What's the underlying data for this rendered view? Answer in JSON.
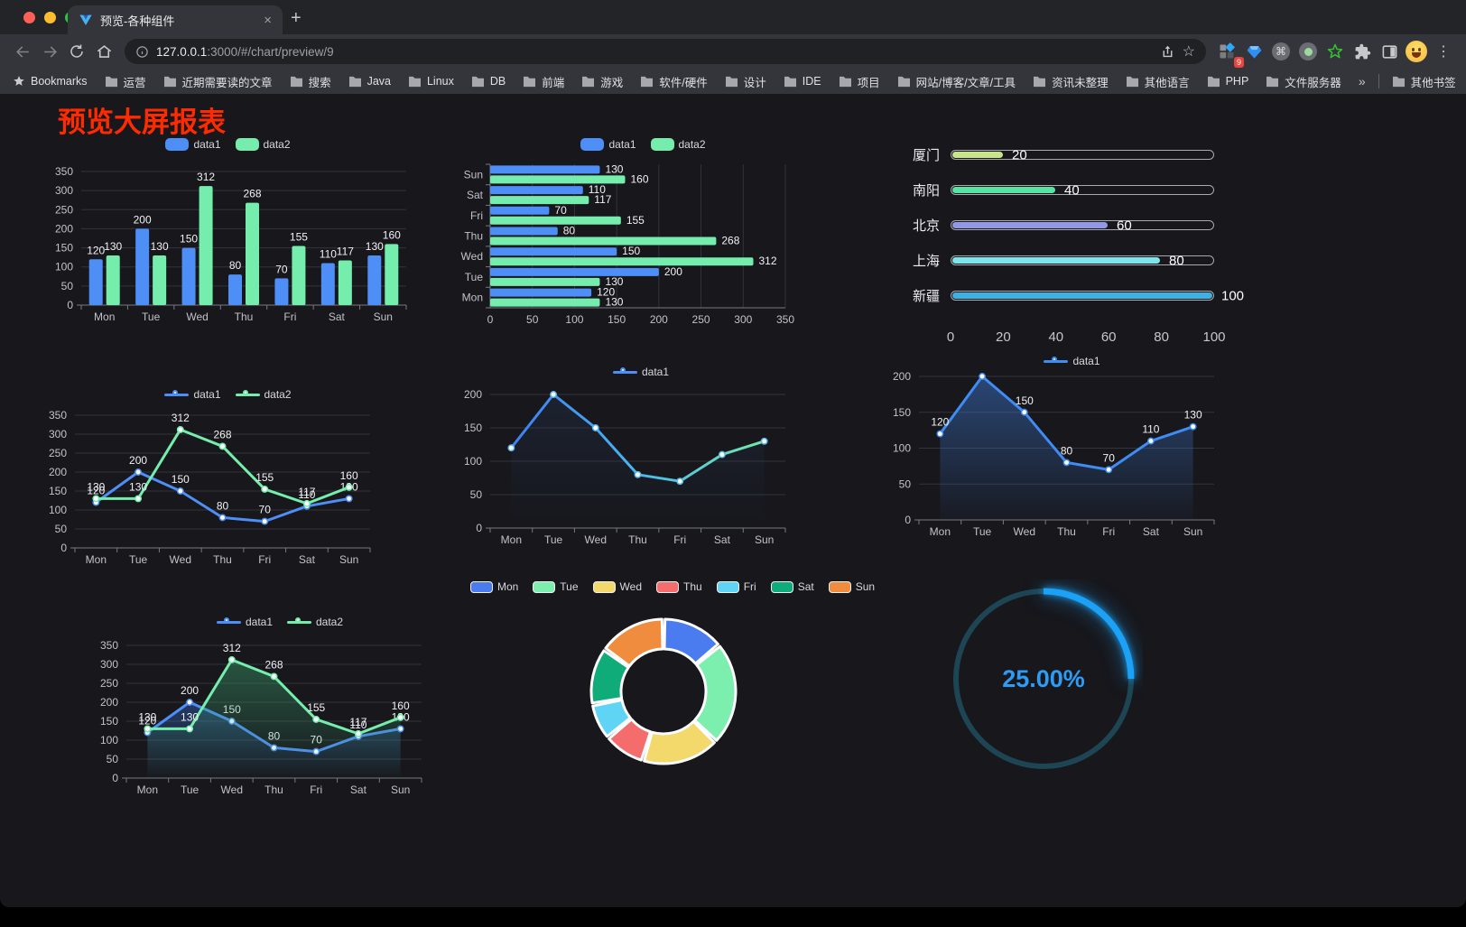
{
  "browser": {
    "tab": {
      "title": "预览-各种组件"
    },
    "icons": {
      "close": "×",
      "new_tab": "+",
      "menu": "⋮",
      "star": "☆",
      "command": "⌘"
    },
    "url": {
      "host": "127.0.0.1",
      "rest": ":3000/#/chart/preview/9"
    },
    "extension_badge": "9",
    "bookmarks": {
      "label": "Bookmarks",
      "folders": [
        "运营",
        "近期需要读的文章",
        "搜索",
        "Java",
        "Linux",
        "DB",
        "前端",
        "游戏",
        "软件/硬件",
        "设计",
        "IDE",
        "项目",
        "网站/博客/文章/工具",
        "资讯未整理",
        "其他语言",
        "PHP",
        "文件服务器"
      ],
      "overflow": "»",
      "other": "其他书签"
    }
  },
  "page": {
    "title": "预览大屏报表",
    "title_color": "#ff2b00",
    "background": "#17171c"
  },
  "chart_data": [
    {
      "type": "bar",
      "title": "",
      "categories": [
        "Mon",
        "Tue",
        "Wed",
        "Thu",
        "Fri",
        "Sat",
        "Sun"
      ],
      "ylim": [
        0,
        350
      ],
      "ytick_step": 50,
      "show_labels": true,
      "legend_position": "top",
      "series": [
        {
          "name": "data1",
          "color": "#4e8ef7",
          "values": [
            120,
            200,
            150,
            80,
            70,
            110,
            130
          ]
        },
        {
          "name": "data2",
          "color": "#75eead",
          "values": [
            130,
            130,
            312,
            268,
            155,
            117,
            160
          ]
        }
      ]
    },
    {
      "type": "hbar",
      "title": "",
      "categories": [
        "Sun",
        "Sat",
        "Fri",
        "Thu",
        "Wed",
        "Tue",
        "Mon"
      ],
      "xlim": [
        0,
        350
      ],
      "xticks": [
        0,
        50,
        100,
        150,
        200,
        250,
        300,
        350
      ],
      "show_labels": true,
      "legend_position": "top",
      "series": [
        {
          "name": "data1",
          "color": "#4e8ef7",
          "values": [
            130,
            110,
            70,
            80,
            150,
            200,
            120
          ]
        },
        {
          "name": "data2",
          "color": "#75eead",
          "values": [
            160,
            117,
            155,
            268,
            312,
            130,
            130
          ]
        }
      ]
    },
    {
      "type": "progress",
      "title": "",
      "max": 100,
      "xticks": [
        0,
        20,
        40,
        60,
        80,
        100
      ],
      "rows": [
        {
          "label": "厦门",
          "value": 20,
          "color": "#c9e58a"
        },
        {
          "label": "南阳",
          "value": 40,
          "color": "#57e3a4"
        },
        {
          "label": "北京",
          "value": 60,
          "color": "#9297e6"
        },
        {
          "label": "上海",
          "value": 80,
          "color": "#7ee6ea"
        },
        {
          "label": "新疆",
          "value": 100,
          "color": "#3fb0e0"
        }
      ]
    },
    {
      "type": "line",
      "title": "",
      "categories": [
        "Mon",
        "Tue",
        "Wed",
        "Thu",
        "Fri",
        "Sat",
        "Sun"
      ],
      "ylim": [
        0,
        350
      ],
      "ytick_step": 50,
      "show_labels": true,
      "legend_position": "top",
      "series": [
        {
          "name": "data1",
          "color": "#4e8ef7",
          "values": [
            120,
            200,
            150,
            80,
            70,
            110,
            130
          ]
        },
        {
          "name": "data2",
          "color": "#75eead",
          "values": [
            130,
            130,
            312,
            268,
            155,
            117,
            160
          ]
        }
      ]
    },
    {
      "type": "line",
      "title": "",
      "categories": [
        "Mon",
        "Tue",
        "Wed",
        "Thu",
        "Fri",
        "Sat",
        "Sun"
      ],
      "ylim": [
        0,
        200
      ],
      "ytick_step": 50,
      "show_labels": false,
      "legend_position": "top",
      "series": [
        {
          "name": "data1",
          "color": "#4e8ef7",
          "marker_color": "#57b7ef",
          "gradient": [
            "#3e7ef2",
            "#49b7ee",
            "#72e9a9"
          ],
          "area": true,
          "area_from": "rgba(40,60,95,0.30)",
          "area_to": "rgba(40,60,95,0)",
          "values": [
            120,
            200,
            150,
            80,
            70,
            110,
            130
          ]
        }
      ]
    },
    {
      "type": "line",
      "title": "",
      "categories": [
        "Mon",
        "Tue",
        "Wed",
        "Thu",
        "Fri",
        "Sat",
        "Sun"
      ],
      "ylim": [
        0,
        200
      ],
      "ytick_step": 50,
      "show_labels": true,
      "legend_position": "top",
      "series": [
        {
          "name": "data1",
          "color": "#3f8cf3",
          "area": true,
          "area_from": "rgba(58,110,190,0.55)",
          "area_to": "rgba(58,110,190,0.04)",
          "values": [
            120,
            200,
            150,
            80,
            70,
            110,
            130
          ]
        }
      ]
    },
    {
      "type": "line",
      "title": "",
      "categories": [
        "Mon",
        "Tue",
        "Wed",
        "Thu",
        "Fri",
        "Sat",
        "Sun"
      ],
      "ylim": [
        0,
        350
      ],
      "ytick_step": 50,
      "show_labels": true,
      "legend_position": "top",
      "series": [
        {
          "name": "data1",
          "color": "#4e8ef7",
          "area": true,
          "area_from": "rgba(62,126,242,0.35)",
          "area_to": "rgba(62,126,242,0)",
          "values": [
            120,
            200,
            150,
            80,
            70,
            110,
            130
          ]
        },
        {
          "name": "data2",
          "color": "#75eead",
          "area": true,
          "area_from": "rgba(60,160,110,0.45)",
          "area_to": "rgba(60,160,110,0.02)",
          "values": [
            130,
            130,
            312,
            268,
            155,
            117,
            160
          ]
        }
      ]
    },
    {
      "type": "donut",
      "title": "",
      "legend_position": "top",
      "categories": [
        "Mon",
        "Tue",
        "Wed",
        "Thu",
        "Fri",
        "Sat",
        "Sun"
      ],
      "values": [
        120,
        200,
        150,
        80,
        70,
        110,
        130
      ],
      "colors": [
        "#4a7cf0",
        "#7cefaf",
        "#f3d86b",
        "#f56c6c",
        "#5fd4f5",
        "#0fab79",
        "#f08c3e"
      ]
    },
    {
      "type": "gauge",
      "title": "",
      "value_label": "25.00%",
      "percent": 25,
      "color": "#1ba2f7",
      "text_color": "#2d9cf4",
      "track_color": "#1d4553"
    }
  ]
}
